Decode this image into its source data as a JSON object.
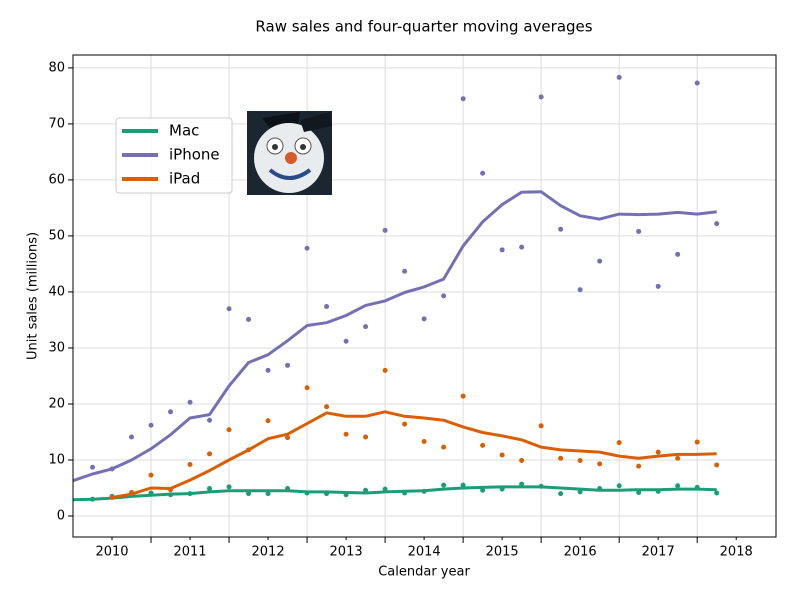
{
  "chart_data": {
    "type": "line",
    "title": "Raw sales and four-quarter moving averages",
    "x_label": "Calendar year",
    "y_label": "Unit sales (millions)",
    "x": [
      2010.0,
      2010.25,
      2010.5,
      2010.75,
      2011.0,
      2011.25,
      2011.5,
      2011.75,
      2012.0,
      2012.25,
      2012.5,
      2012.75,
      2013.0,
      2013.25,
      2013.5,
      2013.75,
      2014.0,
      2014.25,
      2014.5,
      2014.75,
      2015.0,
      2015.25,
      2015.5,
      2015.75,
      2016.0,
      2016.25,
      2016.5,
      2016.75,
      2017.0,
      2017.25,
      2017.5,
      2017.75,
      2018.0,
      2018.25
    ],
    "series": [
      {
        "name": "Mac",
        "color": "#1b9e77",
        "values": [
          null,
          3.0,
          3.5,
          3.9,
          4.1,
          3.8,
          4.0,
          4.9,
          5.2,
          4.0,
          4.0,
          4.9,
          4.1,
          4.0,
          3.8,
          4.6,
          4.8,
          4.1,
          4.4,
          5.5,
          5.5,
          4.6,
          4.8,
          5.7,
          5.3,
          4.0,
          4.3,
          4.9,
          5.4,
          4.2,
          4.4,
          5.4,
          5.1,
          4.1
        ],
        "moving_average": [
          2.9,
          3.0,
          3.2,
          3.5,
          3.7,
          3.9,
          4.0,
          4.3,
          4.5,
          4.5,
          4.5,
          4.5,
          4.3,
          4.3,
          4.2,
          4.1,
          4.3,
          4.4,
          4.5,
          4.8,
          5.0,
          5.1,
          5.2,
          5.2,
          5.2,
          5.0,
          4.8,
          4.6,
          4.6,
          4.7,
          4.7,
          4.8,
          4.8,
          4.7
        ]
      },
      {
        "name": "iPhone",
        "color": "#7570b3",
        "values": [
          null,
          8.7,
          8.4,
          14.1,
          16.2,
          18.6,
          20.3,
          17.1,
          37.0,
          35.1,
          26.0,
          26.9,
          47.8,
          37.4,
          31.2,
          33.8,
          51.0,
          43.7,
          35.2,
          39.3,
          74.5,
          61.2,
          47.5,
          48.0,
          74.8,
          51.2,
          40.4,
          45.5,
          78.3,
          50.8,
          41.0,
          46.7,
          77.3,
          52.2
        ],
        "moving_average": [
          6.3,
          7.5,
          8.4,
          10.0,
          12.0,
          14.5,
          17.5,
          18.1,
          23.2,
          27.4,
          28.8,
          31.3,
          34.0,
          34.5,
          35.8,
          37.6,
          38.4,
          39.9,
          40.9,
          42.3,
          48.2,
          52.5,
          55.6,
          57.8,
          57.9,
          55.4,
          53.6,
          53.0,
          53.9,
          53.8,
          53.9,
          54.2,
          53.9,
          54.3
        ]
      },
      {
        "name": "iPad",
        "color": "#d95f02",
        "values": [
          null,
          null,
          3.3,
          4.2,
          7.3,
          4.7,
          9.2,
          11.1,
          15.4,
          11.8,
          17.0,
          14.0,
          22.9,
          19.5,
          14.6,
          14.1,
          26.0,
          16.4,
          13.3,
          12.3,
          21.4,
          12.6,
          10.9,
          9.9,
          16.1,
          10.3,
          9.9,
          9.3,
          13.1,
          8.9,
          11.4,
          10.3,
          13.2,
          9.1
        ],
        "moving_average": [
          null,
          null,
          3.3,
          3.9,
          5.0,
          4.9,
          6.4,
          8.1,
          10.0,
          11.8,
          13.8,
          14.6,
          16.5,
          18.4,
          17.8,
          17.8,
          18.6,
          17.8,
          17.5,
          17.1,
          15.9,
          14.9,
          14.3,
          13.6,
          12.3,
          11.8,
          11.6,
          11.4,
          10.7,
          10.3,
          10.7,
          11.0,
          11.0,
          11.1
        ]
      }
    ],
    "xlim": [
      2010.0,
      2019.01
    ],
    "xticks": [
      {
        "value": 2010.5,
        "label": "2010"
      },
      {
        "value": 2011.5,
        "label": "2011"
      },
      {
        "value": 2012.5,
        "label": "2012"
      },
      {
        "value": 2013.5,
        "label": "2013"
      },
      {
        "value": 2014.5,
        "label": "2014"
      },
      {
        "value": 2015.5,
        "label": "2015"
      },
      {
        "value": 2016.5,
        "label": "2016"
      },
      {
        "value": 2017.5,
        "label": "2017"
      },
      {
        "value": 2018.5,
        "label": "2018"
      }
    ],
    "xgrid": [
      2011,
      2012,
      2013,
      2014,
      2015,
      2016,
      2017,
      2018
    ],
    "ylim": [
      -3.75,
      82.3
    ],
    "yticks": [
      0,
      10,
      20,
      30,
      40,
      50,
      60,
      70,
      80
    ],
    "grid": true,
    "legend": "upper left"
  }
}
